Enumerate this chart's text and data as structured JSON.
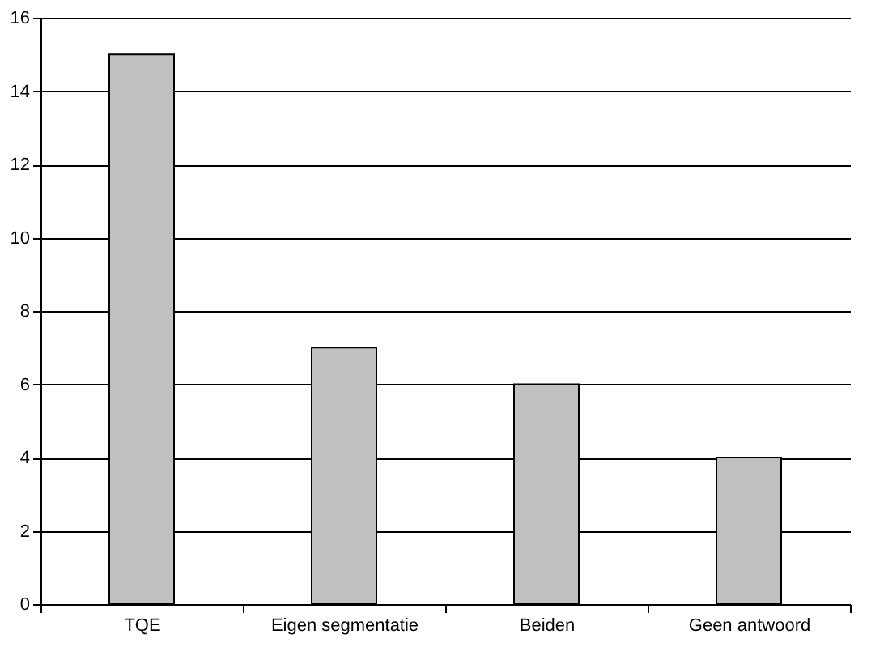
{
  "chart_data": {
    "type": "bar",
    "categories": [
      "TQE",
      "Eigen segmentatie",
      "Beiden",
      "Geen antwoord"
    ],
    "values": [
      15,
      7,
      6,
      4
    ],
    "color": "#c0c0c0",
    "ylim": [
      0,
      16
    ],
    "yticks": [
      0,
      2,
      4,
      6,
      8,
      10,
      12,
      14,
      16
    ],
    "grid": "y"
  }
}
